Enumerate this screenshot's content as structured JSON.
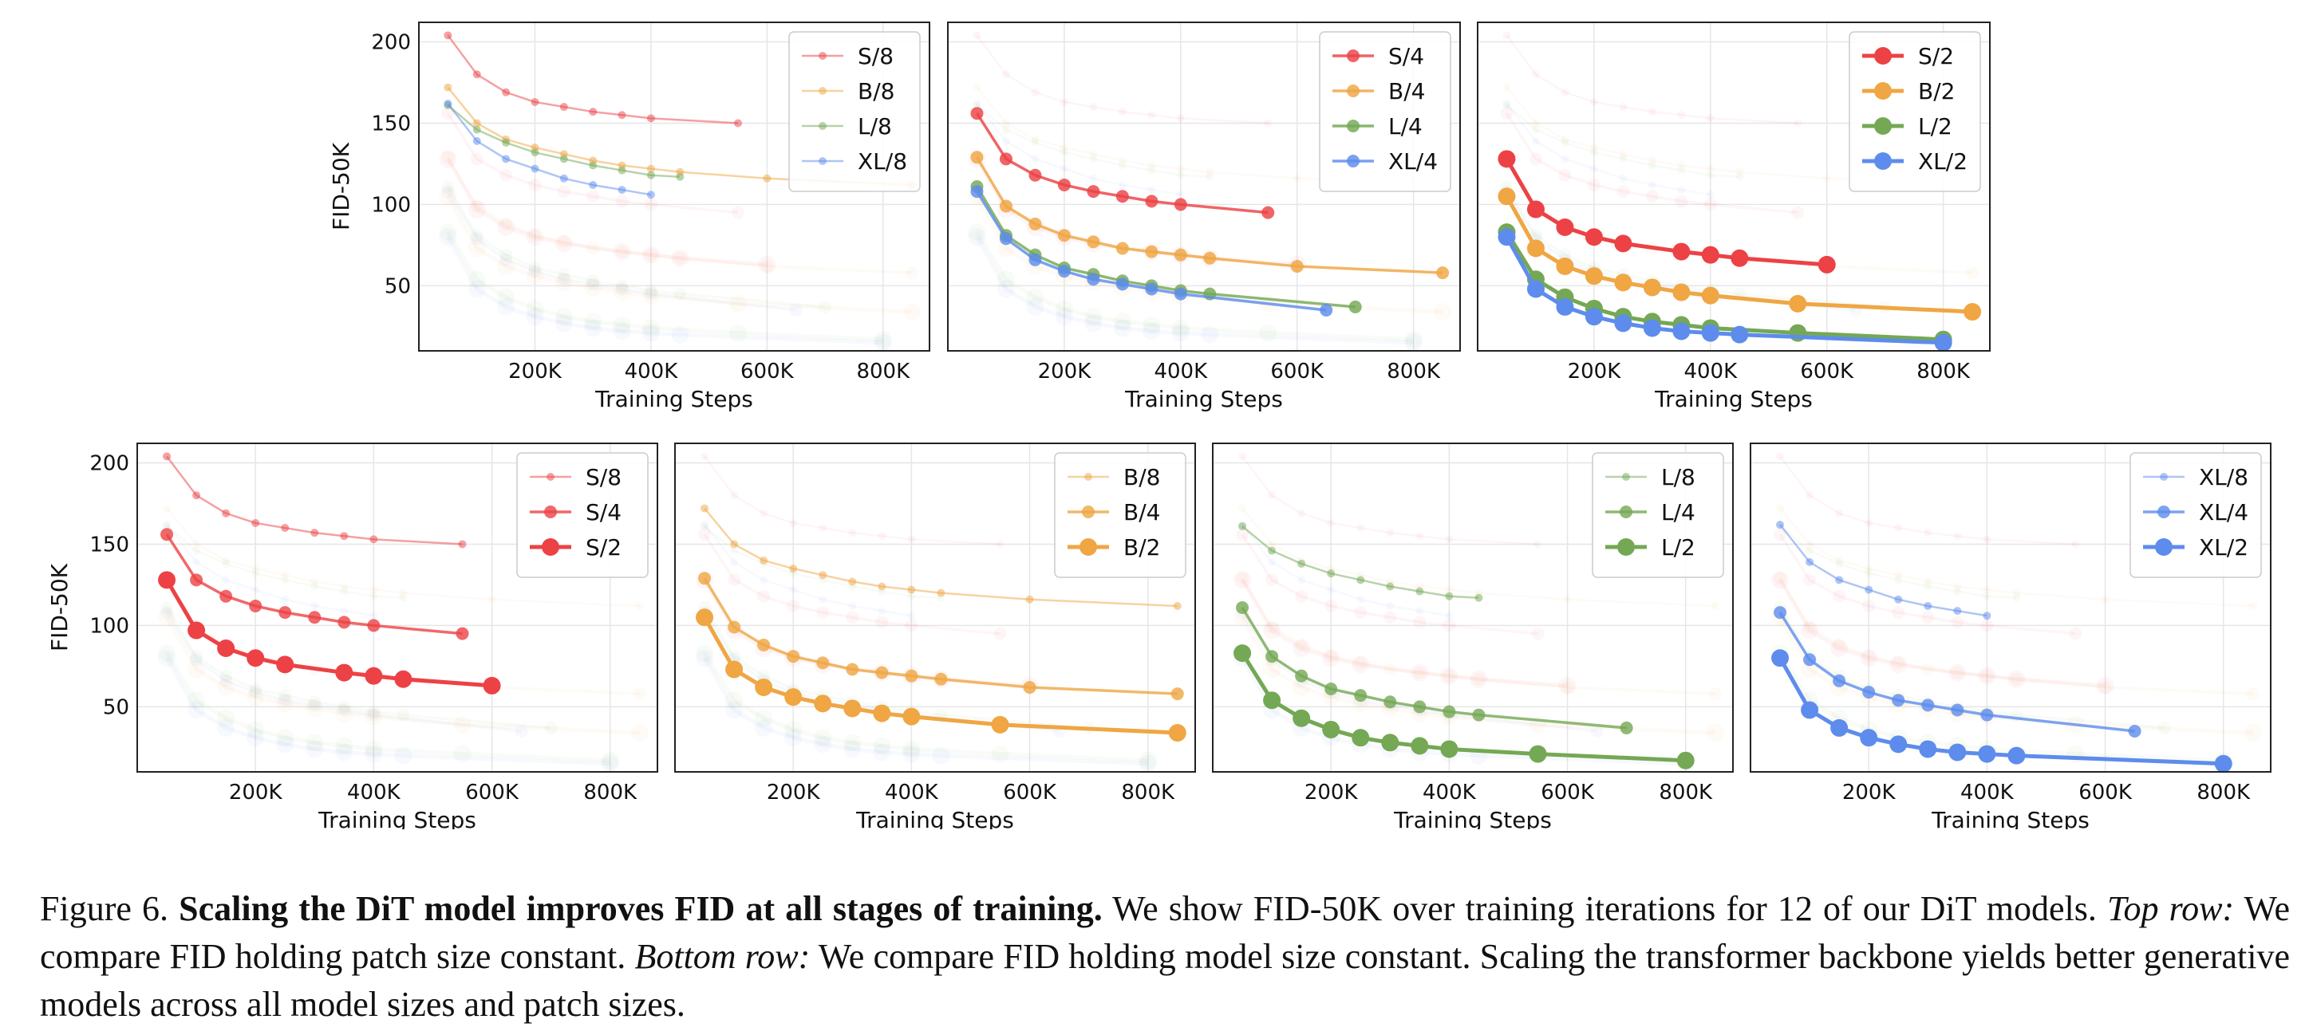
{
  "figure": {
    "x_ticks": [
      "200K",
      "400K",
      "600K",
      "800K"
    ],
    "x_tick_values": [
      200000,
      400000,
      600000,
      800000
    ],
    "y_ticks": [
      "50",
      "100",
      "150",
      "200"
    ],
    "y_tick_values": [
      50,
      100,
      150,
      200
    ],
    "xlabel": "Training Steps",
    "ylabel": "FID-50K",
    "xlim": [
      0,
      880000
    ],
    "ylim": [
      10,
      212
    ]
  },
  "chart_data": {
    "type": "line",
    "xlabel": "Training Steps",
    "ylabel": "FID-50K",
    "series": [
      {
        "name": "S/8",
        "color": "#ec4245",
        "patch": 8,
        "x": [
          50000,
          100000,
          150000,
          200000,
          250000,
          300000,
          350000,
          400000,
          550000
        ],
        "values": [
          204,
          180,
          169,
          163,
          160,
          157,
          155,
          153,
          150
        ]
      },
      {
        "name": "B/8",
        "color": "#efa643",
        "patch": 8,
        "x": [
          50000,
          100000,
          150000,
          200000,
          250000,
          300000,
          350000,
          400000,
          450000,
          600000,
          850000
        ],
        "values": [
          172,
          150,
          140,
          135,
          131,
          127,
          124,
          122,
          120,
          116,
          112
        ]
      },
      {
        "name": "L/8",
        "color": "#74a854",
        "patch": 8,
        "x": [
          50000,
          100000,
          150000,
          200000,
          250000,
          300000,
          350000,
          400000,
          450000
        ],
        "values": [
          161,
          146,
          138,
          132,
          128,
          124,
          121,
          118,
          117
        ]
      },
      {
        "name": "XL/8",
        "color": "#5d8ced",
        "patch": 8,
        "x": [
          50000,
          100000,
          150000,
          200000,
          250000,
          300000,
          350000,
          400000
        ],
        "values": [
          162,
          139,
          128,
          122,
          116,
          112,
          109,
          106
        ]
      },
      {
        "name": "S/4",
        "color": "#ec4245",
        "patch": 4,
        "x": [
          50000,
          100000,
          150000,
          200000,
          250000,
          300000,
          350000,
          400000,
          550000
        ],
        "values": [
          156,
          128,
          118,
          112,
          108,
          105,
          102,
          100,
          95
        ]
      },
      {
        "name": "B/4",
        "color": "#efa643",
        "patch": 4,
        "x": [
          50000,
          100000,
          150000,
          200000,
          250000,
          300000,
          350000,
          400000,
          450000,
          600000,
          850000
        ],
        "values": [
          129,
          99,
          88,
          81,
          77,
          73,
          71,
          69,
          67,
          62,
          58
        ]
      },
      {
        "name": "L/4",
        "color": "#74a854",
        "patch": 4,
        "x": [
          50000,
          100000,
          150000,
          200000,
          250000,
          300000,
          350000,
          400000,
          450000,
          700000
        ],
        "values": [
          111,
          81,
          69,
          61,
          57,
          53,
          50,
          47,
          45,
          37
        ]
      },
      {
        "name": "XL/4",
        "color": "#5d8ced",
        "patch": 4,
        "x": [
          50000,
          100000,
          150000,
          200000,
          250000,
          300000,
          350000,
          400000,
          650000
        ],
        "values": [
          108,
          79,
          66,
          59,
          54,
          51,
          48,
          45,
          35
        ]
      },
      {
        "name": "S/2",
        "color": "#ec4245",
        "patch": 2,
        "x": [
          50000,
          100000,
          150000,
          200000,
          250000,
          350000,
          400000,
          450000,
          600000
        ],
        "values": [
          128,
          97,
          86,
          80,
          76,
          71,
          69,
          67,
          63
        ]
      },
      {
        "name": "B/2",
        "color": "#efa643",
        "patch": 2,
        "x": [
          50000,
          100000,
          150000,
          200000,
          250000,
          300000,
          350000,
          400000,
          550000,
          850000
        ],
        "values": [
          105,
          73,
          62,
          56,
          52,
          49,
          46,
          44,
          39,
          34
        ]
      },
      {
        "name": "L/2",
        "color": "#74a854",
        "patch": 2,
        "x": [
          50000,
          100000,
          150000,
          200000,
          250000,
          300000,
          350000,
          400000,
          550000,
          800000
        ],
        "values": [
          83,
          54,
          43,
          36,
          31,
          28,
          26,
          24,
          21,
          17
        ]
      },
      {
        "name": "XL/2",
        "color": "#5d8ced",
        "patch": 2,
        "x": [
          50000,
          100000,
          150000,
          200000,
          250000,
          300000,
          350000,
          400000,
          450000,
          800000
        ],
        "values": [
          80,
          48,
          37,
          31,
          27,
          24,
          22,
          21,
          20,
          15
        ]
      }
    ],
    "panels": [
      {
        "id": "top-1",
        "row": "top",
        "series": [
          "S/8",
          "B/8",
          "L/8",
          "XL/8"
        ]
      },
      {
        "id": "top-2",
        "row": "top",
        "series": [
          "S/4",
          "B/4",
          "L/4",
          "XL/4"
        ]
      },
      {
        "id": "top-3",
        "row": "top",
        "series": [
          "S/2",
          "B/2",
          "L/2",
          "XL/2"
        ]
      },
      {
        "id": "bottom-1",
        "row": "bottom",
        "series": [
          "S/8",
          "S/4",
          "S/2"
        ]
      },
      {
        "id": "bottom-2",
        "row": "bottom",
        "series": [
          "B/8",
          "B/4",
          "B/2"
        ]
      },
      {
        "id": "bottom-3",
        "row": "bottom",
        "series": [
          "L/8",
          "L/4",
          "L/2"
        ]
      },
      {
        "id": "bottom-4",
        "row": "bottom",
        "series": [
          "XL/8",
          "XL/4",
          "XL/2"
        ]
      }
    ]
  },
  "caption": {
    "label": "Figure 6.",
    "title": "Scaling the DiT model improves FID at all stages of training.",
    "text1": "We show FID-50K over training iterations for 12 of our DiT models.",
    "top_label": "Top row:",
    "text2": "We compare FID holding patch size constant.",
    "bottom_label": "Bottom row:",
    "text3": "We compare FID holding model size constant. Scaling the transformer backbone yields better generative models across all model sizes and patch sizes."
  }
}
